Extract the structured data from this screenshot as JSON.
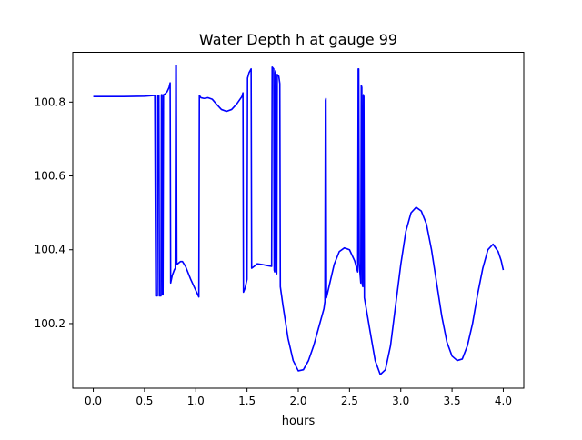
{
  "chart_data": {
    "type": "line",
    "title": "Water Depth h at gauge 99",
    "xlabel": "hours",
    "ylabel": "",
    "xlim": [
      -0.2,
      4.2
    ],
    "ylim": [
      100.025,
      100.935
    ],
    "xticks": [
      0.0,
      0.5,
      1.0,
      1.5,
      2.0,
      2.5,
      3.0,
      3.5,
      4.0
    ],
    "xtick_labels": [
      "0.0",
      "0.5",
      "1.0",
      "1.5",
      "2.0",
      "2.5",
      "3.0",
      "3.5",
      "4.0"
    ],
    "yticks": [
      100.2,
      100.4,
      100.6,
      100.8
    ],
    "ytick_labels": [
      "100.2",
      "100.4",
      "100.6",
      "100.8"
    ],
    "grid": false,
    "series": [
      {
        "color": "#0000ff",
        "points": [
          [
            0.0,
            100.815
          ],
          [
            0.3,
            100.815
          ],
          [
            0.5,
            100.816
          ],
          [
            0.6,
            100.818
          ],
          [
            0.61,
            100.275
          ],
          [
            0.625,
            100.275
          ],
          [
            0.63,
            100.818
          ],
          [
            0.64,
            100.818
          ],
          [
            0.645,
            100.275
          ],
          [
            0.66,
            100.275
          ],
          [
            0.665,
            100.82
          ],
          [
            0.67,
            100.82
          ],
          [
            0.675,
            100.278
          ],
          [
            0.68,
            100.278
          ],
          [
            0.685,
            100.82
          ],
          [
            0.7,
            100.822
          ],
          [
            0.72,
            100.828
          ],
          [
            0.74,
            100.84
          ],
          [
            0.75,
            100.852
          ],
          [
            0.755,
            100.31
          ],
          [
            0.77,
            100.33
          ],
          [
            0.79,
            100.345
          ],
          [
            0.8,
            100.35
          ],
          [
            0.805,
            100.9
          ],
          [
            0.81,
            100.9
          ],
          [
            0.815,
            100.36
          ],
          [
            0.85,
            100.368
          ],
          [
            0.87,
            100.368
          ],
          [
            0.9,
            100.355
          ],
          [
            0.95,
            100.32
          ],
          [
            1.0,
            100.29
          ],
          [
            1.03,
            100.272
          ],
          [
            1.035,
            100.818
          ],
          [
            1.05,
            100.812
          ],
          [
            1.08,
            100.81
          ],
          [
            1.12,
            100.812
          ],
          [
            1.16,
            100.808
          ],
          [
            1.2,
            100.795
          ],
          [
            1.25,
            100.78
          ],
          [
            1.3,
            100.775
          ],
          [
            1.35,
            100.78
          ],
          [
            1.4,
            100.795
          ],
          [
            1.45,
            100.815
          ],
          [
            1.46,
            100.825
          ],
          [
            1.465,
            100.285
          ],
          [
            1.48,
            100.295
          ],
          [
            1.5,
            100.32
          ],
          [
            1.505,
            100.865
          ],
          [
            1.52,
            100.88
          ],
          [
            1.54,
            100.89
          ],
          [
            1.545,
            100.35
          ],
          [
            1.57,
            100.355
          ],
          [
            1.6,
            100.362
          ],
          [
            1.65,
            100.36
          ],
          [
            1.7,
            100.357
          ],
          [
            1.74,
            100.355
          ],
          [
            1.745,
            100.895
          ],
          [
            1.76,
            100.89
          ],
          [
            1.765,
            100.345
          ],
          [
            1.77,
            100.34
          ],
          [
            1.775,
            100.88
          ],
          [
            1.78,
            100.885
          ],
          [
            1.785,
            100.34
          ],
          [
            1.79,
            100.335
          ],
          [
            1.795,
            100.875
          ],
          [
            1.81,
            100.87
          ],
          [
            1.82,
            100.85
          ],
          [
            1.825,
            100.3
          ],
          [
            1.85,
            100.25
          ],
          [
            1.9,
            100.16
          ],
          [
            1.95,
            100.1
          ],
          [
            2.0,
            100.072
          ],
          [
            2.05,
            100.075
          ],
          [
            2.1,
            100.1
          ],
          [
            2.15,
            100.14
          ],
          [
            2.2,
            100.19
          ],
          [
            2.25,
            100.24
          ],
          [
            2.26,
            100.26
          ],
          [
            2.265,
            100.805
          ],
          [
            2.27,
            100.81
          ],
          [
            2.275,
            100.27
          ],
          [
            2.3,
            100.3
          ],
          [
            2.35,
            100.36
          ],
          [
            2.4,
            100.395
          ],
          [
            2.45,
            100.405
          ],
          [
            2.5,
            100.4
          ],
          [
            2.55,
            100.37
          ],
          [
            2.58,
            100.34
          ],
          [
            2.585,
            100.89
          ],
          [
            2.59,
            100.89
          ],
          [
            2.595,
            100.36
          ],
          [
            2.61,
            100.31
          ],
          [
            2.615,
            100.845
          ],
          [
            2.62,
            100.84
          ],
          [
            2.625,
            100.305
          ],
          [
            2.63,
            100.3
          ],
          [
            2.635,
            100.82
          ],
          [
            2.64,
            100.815
          ],
          [
            2.645,
            100.27
          ],
          [
            2.7,
            100.18
          ],
          [
            2.75,
            100.1
          ],
          [
            2.8,
            100.062
          ],
          [
            2.85,
            100.075
          ],
          [
            2.9,
            100.14
          ],
          [
            2.95,
            100.25
          ],
          [
            3.0,
            100.36
          ],
          [
            3.05,
            100.45
          ],
          [
            3.1,
            100.5
          ],
          [
            3.15,
            100.515
          ],
          [
            3.2,
            100.505
          ],
          [
            3.25,
            100.47
          ],
          [
            3.3,
            100.4
          ],
          [
            3.35,
            100.31
          ],
          [
            3.4,
            100.22
          ],
          [
            3.45,
            100.15
          ],
          [
            3.5,
            100.112
          ],
          [
            3.55,
            100.1
          ],
          [
            3.6,
            100.104
          ],
          [
            3.65,
            100.14
          ],
          [
            3.7,
            100.2
          ],
          [
            3.75,
            100.28
          ],
          [
            3.8,
            100.35
          ],
          [
            3.85,
            100.4
          ],
          [
            3.9,
            100.415
          ],
          [
            3.95,
            100.395
          ],
          [
            3.98,
            100.37
          ],
          [
            4.0,
            100.345
          ]
        ]
      }
    ]
  }
}
